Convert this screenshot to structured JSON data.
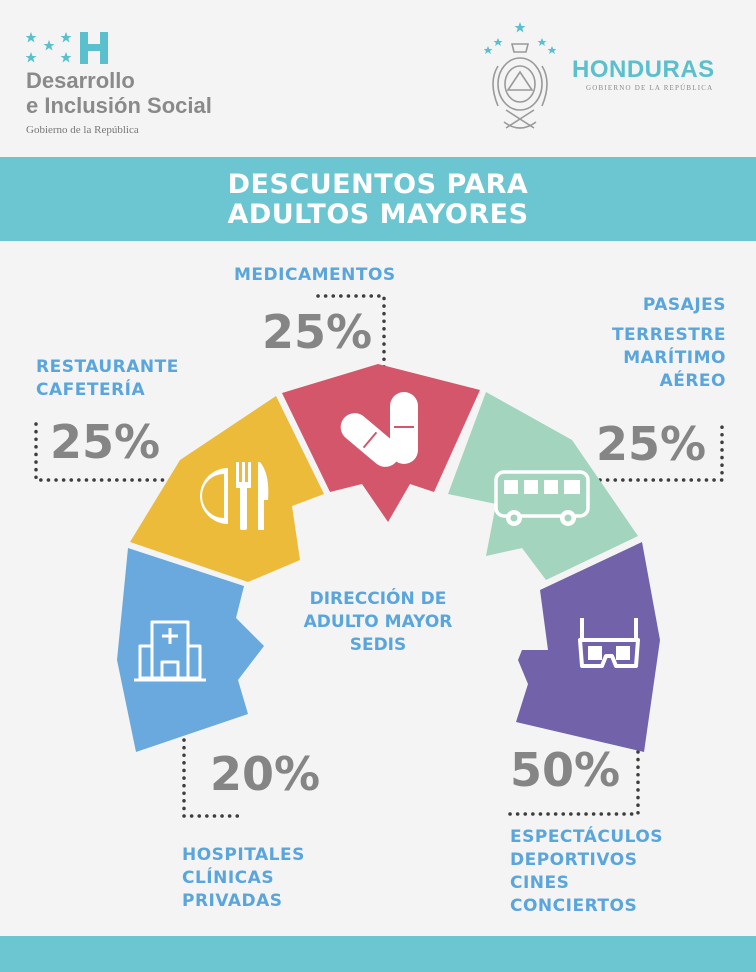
{
  "header": {
    "left_logo": {
      "title": "Desarrollo e Inclusión Social",
      "title_line1": "Desarrollo",
      "title_line2": "e Inclusión Social",
      "subtitle": "Gobierno de la República"
    },
    "right_logo": {
      "title": "HONDURAS",
      "subtitle": "GOBIERNO DE LA REPÚBLICA"
    }
  },
  "banner": {
    "line1": "DESCUENTOS PARA",
    "line2": "ADULTOS MAYORES"
  },
  "center": {
    "line1": "DIRECCIÓN DE",
    "line2": "ADULTO MAYOR",
    "line3": "SEDIS"
  },
  "segments": {
    "hospitales": {
      "percent": "20%",
      "line1": "HOSPITALES",
      "line2": "CLÍNICAS",
      "line3": "PRIVADAS",
      "color": "#6aa9dd",
      "icon": "hospital-icon"
    },
    "restaurante": {
      "percent": "25%",
      "line1": "RESTAURANTE",
      "line2": "CAFETERÍA",
      "color": "#edbb3a",
      "icon": "plate-cutlery-icon"
    },
    "medicamentos": {
      "percent": "25%",
      "line1": "MEDICAMENTOS",
      "color": "#d4566a",
      "icon": "pills-icon"
    },
    "pasajes": {
      "percent": "25%",
      "heading": "PASAJES",
      "line1": "TERRESTRE",
      "line2": "MARÍTIMO",
      "line3": "AÉREO",
      "color": "#a2d4be",
      "icon": "bus-icon"
    },
    "espectaculos": {
      "percent": "50%",
      "line1": "ESPECTÁCULOS",
      "line2": "DEPORTIVOS",
      "line3": "CINES",
      "line4": "CONCIERTOS",
      "color": "#7162a9",
      "icon": "3d-glasses-icon"
    }
  },
  "colors": {
    "banner": "#6cc6d1",
    "label": "#5aa6dc",
    "percent": "#858585",
    "background": "#f4f4f4"
  }
}
